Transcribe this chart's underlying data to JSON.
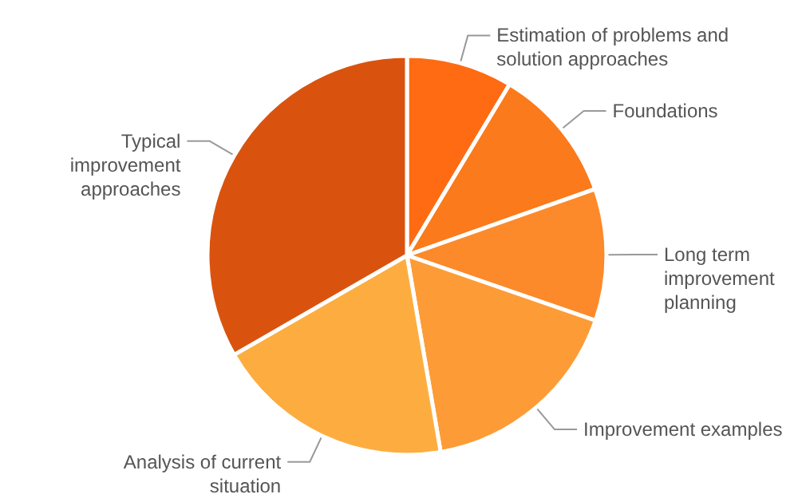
{
  "chart_data": {
    "type": "pie",
    "categories": [
      "Estimation of problems and solution approaches",
      "Foundations",
      "Long term improvement planning",
      "Improvement examples",
      "Analysis of current situation",
      "Typical improvement approaches"
    ],
    "values": [
      8.6,
      11,
      10.7,
      17,
      19.4,
      33.3
    ],
    "colors": [
      "#fe6b12",
      "#fb7a1b",
      "#fc8a2a",
      "#fd9c36",
      "#fdad40",
      "#d9530f"
    ]
  }
}
